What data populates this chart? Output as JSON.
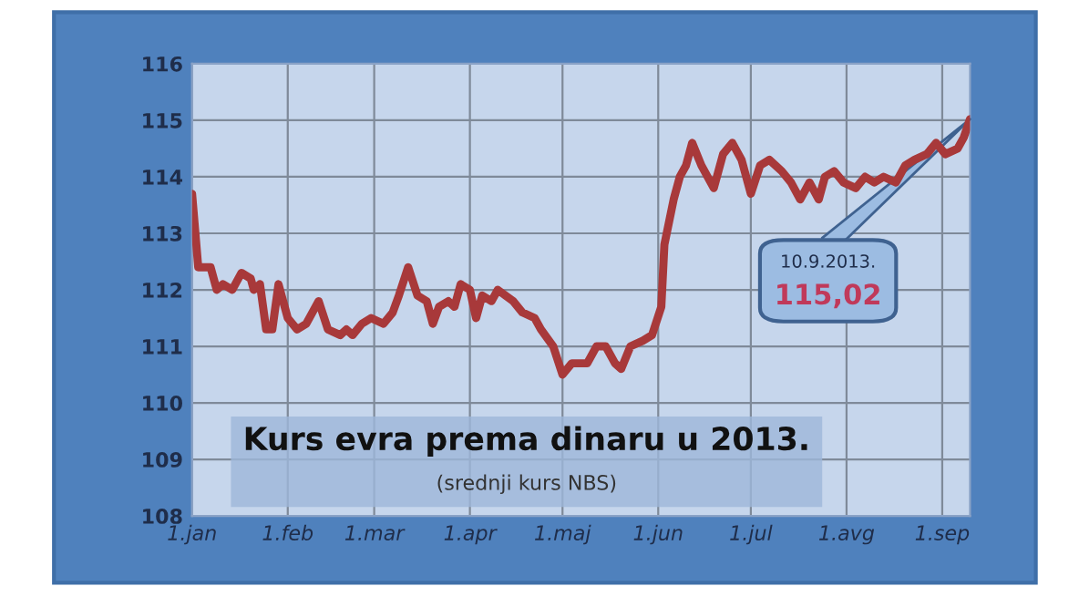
{
  "chart_data": {
    "type": "line",
    "title": "Kurs evra prema dinaru u 2013.",
    "subtitle": "(srednji kurs NBS)",
    "x": [
      "2013-01-01",
      "2013-01-03",
      "2013-01-07",
      "2013-01-09",
      "2013-01-11",
      "2013-01-14",
      "2013-01-17",
      "2013-01-20",
      "2013-01-21",
      "2013-01-23",
      "2013-01-25",
      "2013-01-27",
      "2013-01-29",
      "2013-02-01",
      "2013-02-04",
      "2013-02-07",
      "2013-02-11",
      "2013-02-14",
      "2013-02-18",
      "2013-02-20",
      "2013-02-22",
      "2013-02-25",
      "2013-02-28",
      "2013-03-04",
      "2013-03-07",
      "2013-03-09",
      "2013-03-12",
      "2013-03-15",
      "2013-03-18",
      "2013-03-20",
      "2013-03-22",
      "2013-03-25",
      "2013-03-27",
      "2013-03-29",
      "2013-04-01",
      "2013-04-03",
      "2013-04-05",
      "2013-04-08",
      "2013-04-10",
      "2013-04-15",
      "2013-04-18",
      "2013-04-22",
      "2013-04-24",
      "2013-04-28",
      "2013-05-01",
      "2013-05-04",
      "2013-05-09",
      "2013-05-12",
      "2013-05-15",
      "2013-05-18",
      "2013-05-20",
      "2013-05-23",
      "2013-05-27",
      "2013-05-30",
      "2013-06-02",
      "2013-06-03",
      "2013-06-06",
      "2013-06-08",
      "2013-06-10",
      "2013-06-12",
      "2013-06-15",
      "2013-06-19",
      "2013-06-22",
      "2013-06-25",
      "2013-06-28",
      "2013-07-01",
      "2013-07-04",
      "2013-07-07",
      "2013-07-11",
      "2013-07-14",
      "2013-07-17",
      "2013-07-20",
      "2013-07-23",
      "2013-07-25",
      "2013-07-28",
      "2013-07-31",
      "2013-08-04",
      "2013-08-07",
      "2013-08-10",
      "2013-08-13",
      "2013-08-17",
      "2013-08-20",
      "2013-08-23",
      "2013-08-27",
      "2013-08-30",
      "2013-09-02",
      "2013-09-06",
      "2013-09-08",
      "2013-09-10"
    ],
    "series": [
      {
        "color": "#a8393a",
        "values": [
          113.7,
          112.4,
          112.4,
          112.0,
          112.1,
          112.0,
          112.3,
          112.2,
          112.0,
          112.1,
          111.3,
          111.3,
          112.1,
          111.5,
          111.3,
          111.4,
          111.8,
          111.3,
          111.2,
          111.3,
          111.2,
          111.4,
          111.5,
          111.4,
          111.6,
          111.9,
          112.4,
          111.9,
          111.8,
          111.4,
          111.7,
          111.8,
          111.7,
          112.1,
          112.0,
          111.5,
          111.9,
          111.8,
          112.0,
          111.8,
          111.6,
          111.5,
          111.3,
          111.0,
          110.5,
          110.7,
          110.7,
          111.0,
          111.0,
          110.7,
          110.6,
          111.0,
          111.1,
          111.2,
          111.7,
          112.8,
          113.6,
          114.0,
          114.2,
          114.6,
          114.2,
          113.8,
          114.4,
          114.6,
          114.3,
          113.7,
          114.2,
          114.3,
          114.1,
          113.9,
          113.6,
          113.9,
          113.6,
          114.0,
          114.1,
          113.9,
          113.8,
          114.0,
          113.9,
          114.0,
          113.9,
          114.2,
          114.3,
          114.4,
          114.6,
          114.4,
          114.5,
          114.7,
          115.02
        ]
      }
    ],
    "xlim": [
      "2013-01-01",
      "2013-09-10"
    ],
    "xticks": [
      {
        "value": "2013-01-01",
        "label": "1.jan"
      },
      {
        "value": "2013-02-01",
        "label": "1.feb"
      },
      {
        "value": "2013-03-01",
        "label": "1.mar"
      },
      {
        "value": "2013-04-01",
        "label": "1.apr"
      },
      {
        "value": "2013-05-01",
        "label": "1.maj"
      },
      {
        "value": "2013-06-01",
        "label": "1.jun"
      },
      {
        "value": "2013-07-01",
        "label": "1.jul"
      },
      {
        "value": "2013-08-01",
        "label": "1.avg"
      },
      {
        "value": "2013-09-01",
        "label": "1.sep"
      }
    ],
    "ylim": [
      108,
      116
    ],
    "yticks": [
      108,
      109,
      110,
      111,
      112,
      113,
      114,
      115,
      116
    ],
    "grid": true,
    "legend": false,
    "marker": "none",
    "line_style": "solid",
    "annotations": [
      "10.9.2013.",
      "115,02"
    ]
  }
}
